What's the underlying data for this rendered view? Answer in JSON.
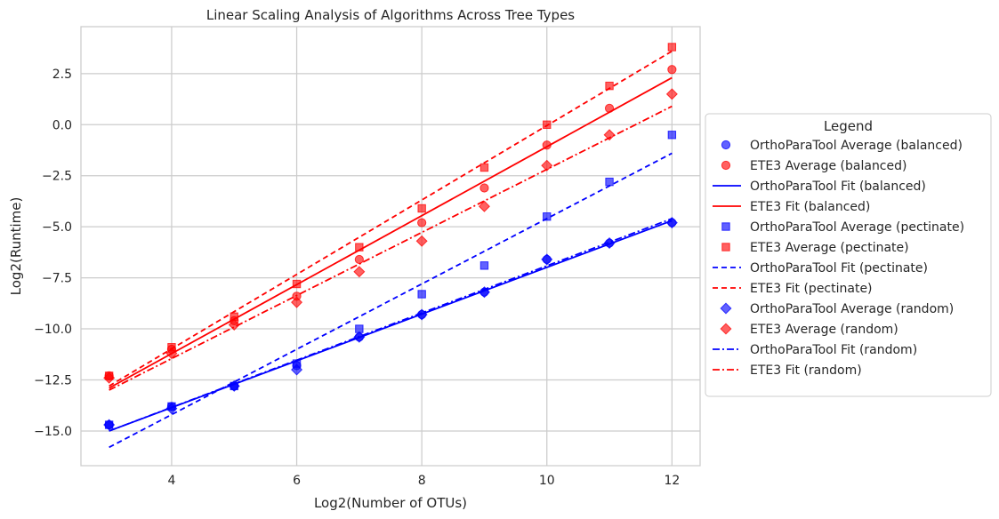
{
  "chart_data": {
    "type": "scatter",
    "title": "Linear Scaling Analysis of Algorithms Across Tree Types",
    "xlabel": "Log2(Number of OTUs)",
    "ylabel": "Log2(Runtime)",
    "xlim": [
      2.55,
      12.45
    ],
    "ylim": [
      -16.7,
      4.8
    ],
    "xticks": [
      4,
      6,
      8,
      10,
      12
    ],
    "xtick_labels": [
      "4",
      "6",
      "8",
      "10",
      "12"
    ],
    "yticks": [
      2.5,
      0,
      -2.5,
      -5,
      -7.5,
      -10,
      -12.5,
      -15
    ],
    "ytick_labels": [
      "2.5",
      "0.0",
      "−2.5",
      "−5.0",
      "−7.5",
      "−10.0",
      "−12.5",
      "−15.0"
    ],
    "grid": true,
    "legend": {
      "title": "Legend",
      "placement": "outside-right"
    },
    "colors": {
      "orthoparatool": "#0000ff",
      "ete3": "#ff0000"
    },
    "series": [
      {
        "name": "OrthoParaTool Average (balanced)",
        "kind": "scatter",
        "marker": "circle",
        "color": "#0000ff",
        "x": [
          3,
          4,
          5,
          6,
          7,
          8,
          9,
          10,
          11,
          12
        ],
        "y": [
          -14.7,
          -13.8,
          -12.8,
          -11.8,
          -10.4,
          -9.3,
          -8.2,
          -6.6,
          -5.8,
          -4.8
        ]
      },
      {
        "name": "ETE3 Average (balanced)",
        "kind": "scatter",
        "marker": "circle",
        "color": "#ff0000",
        "x": [
          3,
          4,
          5,
          6,
          7,
          8,
          9,
          10,
          11,
          12
        ],
        "y": [
          -12.3,
          -11.0,
          -9.6,
          -8.4,
          -6.6,
          -4.8,
          -3.1,
          -1.0,
          0.8,
          2.7
        ]
      },
      {
        "name": "OrthoParaTool Fit (balanced)",
        "kind": "line",
        "dash": "solid",
        "color": "#0000ff",
        "x": [
          3,
          12
        ],
        "y": [
          -15.0,
          -4.7
        ]
      },
      {
        "name": "ETE3 Fit (balanced)",
        "kind": "line",
        "dash": "solid",
        "color": "#ff0000",
        "x": [
          3,
          12
        ],
        "y": [
          -12.9,
          2.3
        ]
      },
      {
        "name": "OrthoParaTool Average (pectinate)",
        "kind": "scatter",
        "marker": "square",
        "color": "#0000ff",
        "x": [
          3,
          4,
          5,
          6,
          7,
          8,
          9,
          10,
          11,
          12
        ],
        "y": [
          -14.7,
          -13.8,
          -12.8,
          -11.7,
          -10.0,
          -8.3,
          -6.9,
          -4.5,
          -2.8,
          -0.5
        ]
      },
      {
        "name": "ETE3 Average (pectinate)",
        "kind": "scatter",
        "marker": "square",
        "color": "#ff0000",
        "x": [
          3,
          4,
          5,
          6,
          7,
          8,
          9,
          10,
          11,
          12
        ],
        "y": [
          -12.3,
          -10.9,
          -9.4,
          -7.8,
          -6.0,
          -4.1,
          -2.1,
          0.0,
          1.9,
          3.8
        ]
      },
      {
        "name": "OrthoParaTool Fit (pectinate)",
        "kind": "line",
        "dash": "dashed",
        "color": "#0000ff",
        "x": [
          3,
          12
        ],
        "y": [
          -15.8,
          -1.4
        ]
      },
      {
        "name": "ETE3 Fit (pectinate)",
        "kind": "line",
        "dash": "dashed",
        "color": "#ff0000",
        "x": [
          3,
          12
        ],
        "y": [
          -12.8,
          3.6
        ]
      },
      {
        "name": "OrthoParaTool Average (random)",
        "kind": "scatter",
        "marker": "diamond",
        "color": "#0000ff",
        "x": [
          3,
          4,
          5,
          6,
          7,
          8,
          9,
          10,
          11,
          12
        ],
        "y": [
          -14.7,
          -13.9,
          -12.8,
          -12.0,
          -10.4,
          -9.3,
          -8.2,
          -6.6,
          -5.8,
          -4.8
        ]
      },
      {
        "name": "ETE3 Average (random)",
        "kind": "scatter",
        "marker": "diamond",
        "color": "#ff0000",
        "x": [
          3,
          4,
          5,
          6,
          7,
          8,
          9,
          10,
          11,
          12
        ],
        "y": [
          -12.4,
          -11.2,
          -9.8,
          -8.7,
          -7.2,
          -5.7,
          -4.0,
          -2.0,
          -0.5,
          1.5
        ]
      },
      {
        "name": "OrthoParaTool Fit (random)",
        "kind": "line",
        "dash": "dashdot",
        "color": "#0000ff",
        "x": [
          3,
          12
        ],
        "y": [
          -15.0,
          -4.6
        ]
      },
      {
        "name": "ETE3 Fit (random)",
        "kind": "line",
        "dash": "dashdot",
        "color": "#ff0000",
        "x": [
          3,
          12
        ],
        "y": [
          -13.0,
          0.9
        ]
      }
    ]
  }
}
